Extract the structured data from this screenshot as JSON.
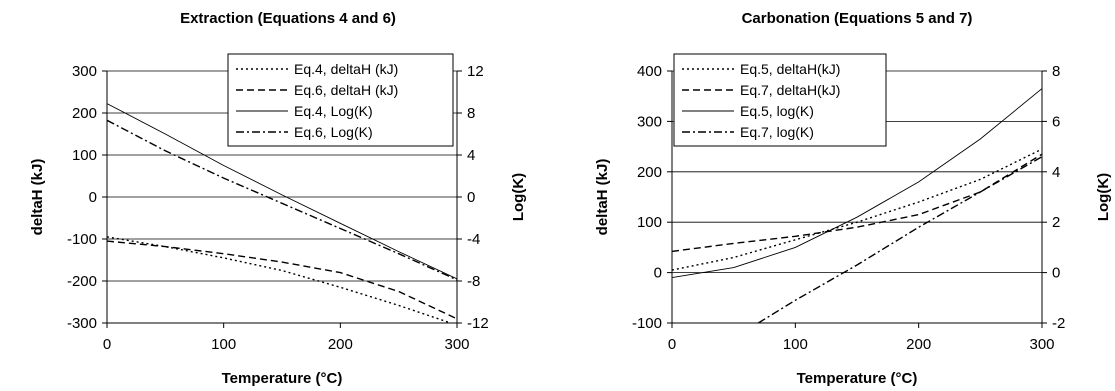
{
  "chart_data": [
    {
      "type": "line",
      "title": "Extraction (Equations 4 and 6)",
      "xlabel": "Temperature (°C)",
      "ylabel": "deltaH (kJ)",
      "y2label": "Log(K)",
      "xlim": [
        0,
        300
      ],
      "ylim": [
        -300,
        300
      ],
      "y2lim": [
        -12,
        12
      ],
      "xticks": [
        "0",
        "100",
        "200",
        "300"
      ],
      "yticks": [
        "300",
        "200",
        "100",
        "0",
        "-100",
        "-200",
        "-300"
      ],
      "y2ticks": [
        "12",
        "8",
        "4",
        "0",
        "-4",
        "-8",
        "-12"
      ],
      "grid": "horizontal",
      "legend_position": "top-right",
      "series": [
        {
          "name": "Eq.4, deltaH (kJ)",
          "axis": "left",
          "style": "dotted",
          "x": [
            0,
            50,
            100,
            150,
            200,
            250,
            300
          ],
          "y": [
            -95,
            -118,
            -145,
            -175,
            -215,
            -258,
            -305
          ]
        },
        {
          "name": "Eq.6, deltaH (kJ)",
          "axis": "left",
          "style": "dashed",
          "x": [
            0,
            50,
            100,
            150,
            200,
            250,
            300
          ],
          "y": [
            -105,
            -118,
            -135,
            -155,
            -180,
            -225,
            -290
          ]
        },
        {
          "name": "Eq.4, Log(K)",
          "axis": "right",
          "style": "solid",
          "x": [
            0,
            50,
            100,
            150,
            200,
            250,
            300
          ],
          "y": [
            8.9,
            6.0,
            3.0,
            0.2,
            -2.5,
            -5.2,
            -7.8
          ]
        },
        {
          "name": "Eq.6, Log(K)",
          "axis": "right",
          "style": "dashdot",
          "x": [
            0,
            50,
            100,
            150,
            200,
            250,
            300
          ],
          "y": [
            7.3,
            4.4,
            1.8,
            -0.6,
            -3.0,
            -5.4,
            -7.9
          ]
        }
      ]
    },
    {
      "type": "line",
      "title": "Carbonation (Equations 5 and 7)",
      "xlabel": "Temperature (°C)",
      "ylabel": "deltaH (kJ)",
      "y2label": "Log(K)",
      "xlim": [
        0,
        300
      ],
      "ylim": [
        -100,
        400
      ],
      "y2lim": [
        -2,
        8
      ],
      "xticks": [
        "0",
        "100",
        "200",
        "300"
      ],
      "yticks": [
        "400",
        "300",
        "200",
        "100",
        "0",
        "-100"
      ],
      "y2ticks": [
        "8",
        "6",
        "4",
        "2",
        "0",
        "-2"
      ],
      "grid": "horizontal",
      "legend_position": "top-left",
      "series": [
        {
          "name": "Eq.5, deltaH(kJ)",
          "axis": "left",
          "style": "dotted",
          "x": [
            0,
            50,
            100,
            150,
            200,
            250,
            300
          ],
          "y": [
            5,
            30,
            65,
            100,
            140,
            185,
            245
          ]
        },
        {
          "name": "Eq.7, deltaH(kJ)",
          "axis": "left",
          "style": "dashed",
          "x": [
            0,
            50,
            100,
            150,
            200,
            250,
            300
          ],
          "y": [
            42,
            58,
            72,
            90,
            115,
            160,
            235
          ]
        },
        {
          "name": "Eq.5, log(K)",
          "axis": "right",
          "style": "solid",
          "x": [
            0,
            50,
            100,
            150,
            200,
            250,
            300
          ],
          "y": [
            -0.2,
            0.2,
            1.0,
            2.2,
            3.6,
            5.3,
            7.3
          ]
        },
        {
          "name": "Eq.7, log(K)",
          "axis": "right",
          "style": "dashdot",
          "x": [
            70,
            100,
            150,
            200,
            250,
            300
          ],
          "y": [
            -2.0,
            -1.1,
            0.3,
            1.8,
            3.2,
            4.6
          ]
        }
      ]
    }
  ]
}
